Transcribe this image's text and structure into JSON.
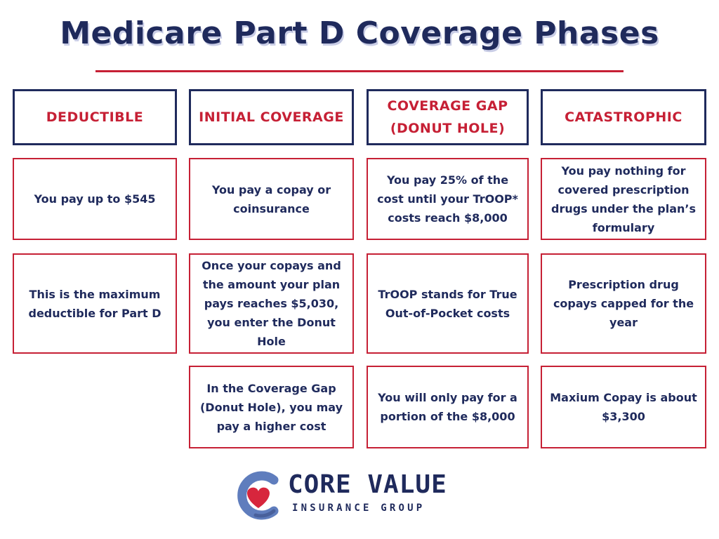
{
  "title": "Medicare Part D Coverage Phases",
  "colors": {
    "navy": "#1f2a5c",
    "red": "#c62035",
    "logo_blue": "#5f7dbd"
  },
  "columns": [
    {
      "header": "DEDUCTIBLE",
      "cells": [
        "You pay up to $545",
        "This is the maximum deductible for Part D"
      ]
    },
    {
      "header": "INITIAL COVERAGE",
      "cells": [
        "You pay a copay or coinsurance",
        "Once your copays and the amount your plan pays reaches $5,030, you enter the Donut Hole",
        "In the Coverage Gap (Donut Hole), you may pay a higher cost"
      ]
    },
    {
      "header": "COVERAGE GAP (DONUT HOLE)",
      "cells": [
        "You pay 25% of the cost until your TrOOP* costs reach $8,000",
        "TrOOP stands for True Out-of-Pocket costs",
        "You will only pay for a portion of the $8,000"
      ]
    },
    {
      "header": "CATASTROPHIC",
      "cells": [
        "You pay nothing for covered prescription drugs under the plan’s formulary",
        "Prescription drug copays capped for the year",
        "Maxium Copay is about $3,300"
      ]
    }
  ],
  "logo": {
    "name": "CORE VALUE",
    "subtitle": "INSURANCE GROUP",
    "icon": "heart-c-icon"
  }
}
